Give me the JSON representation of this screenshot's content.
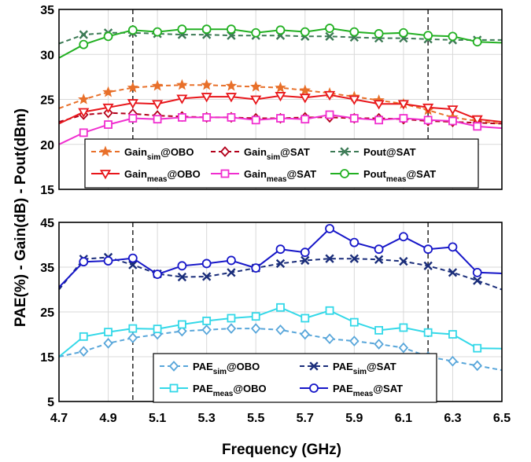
{
  "chart_data": [
    {
      "type": "line",
      "panel": "top",
      "xlim": [
        4.7,
        6.5
      ],
      "ylim": [
        15,
        35
      ],
      "grid": true,
      "yticks": [
        15,
        20,
        25,
        30,
        35
      ],
      "legend_position": "bottom",
      "x": [
        4.7,
        4.8,
        4.9,
        5.0,
        5.1,
        5.2,
        5.3,
        5.4,
        5.5,
        5.6,
        5.7,
        5.8,
        5.9,
        6.0,
        6.1,
        6.2,
        6.3,
        6.4,
        6.5
      ],
      "reference_lines_x": [
        5.0,
        6.2
      ],
      "series": [
        {
          "legend_main": "Gain",
          "legend_sub": "sim",
          "legend_tail": "@OBO",
          "color": "#E8702A",
          "dash": "dashed",
          "marker": "star",
          "marker_x": [
            4.8,
            4.9,
            5.0,
            5.1,
            5.2,
            5.3,
            5.4,
            5.5,
            5.6,
            5.7,
            5.8,
            5.9,
            6.0,
            6.1,
            6.2,
            6.3,
            6.4
          ],
          "values": [
            24.0,
            25.0,
            25.8,
            26.3,
            26.5,
            26.6,
            26.6,
            26.5,
            26.4,
            26.3,
            26.0,
            25.7,
            25.3,
            24.9,
            24.5,
            23.8,
            23.0,
            22.6,
            22.3
          ]
        },
        {
          "legend_main": "Gain",
          "legend_sub": "sim",
          "legend_tail": "@SAT",
          "color": "#B3001B",
          "dash": "dashed",
          "marker": "diamond",
          "marker_x": [
            4.8,
            4.9,
            5.0,
            5.1,
            5.2,
            5.3,
            5.4,
            5.5,
            5.6,
            5.7,
            5.8,
            5.9,
            6.0,
            6.1,
            6.2,
            6.3,
            6.4
          ],
          "values": [
            22.5,
            23.3,
            23.5,
            23.4,
            23.2,
            23.1,
            23.0,
            23.0,
            22.9,
            22.9,
            23.0,
            23.0,
            22.9,
            22.9,
            22.8,
            22.6,
            22.5,
            22.4,
            22.3
          ]
        },
        {
          "legend_main": "Pout",
          "legend_sub": "",
          "legend_tail": "@SAT",
          "color": "#3C7A55",
          "dash": "dashed",
          "marker": "x",
          "marker_x": [
            4.8,
            4.9,
            5.0,
            5.1,
            5.2,
            5.3,
            5.4,
            5.5,
            5.6,
            5.7,
            5.8,
            5.9,
            6.0,
            6.1,
            6.2,
            6.3,
            6.4
          ],
          "values": [
            31.2,
            32.2,
            32.4,
            32.4,
            32.3,
            32.2,
            32.2,
            32.1,
            32.1,
            32.1,
            32.0,
            32.0,
            31.9,
            31.8,
            31.8,
            31.7,
            31.6,
            31.6,
            31.6
          ]
        },
        {
          "legend_main": "Gain",
          "legend_sub": "meas",
          "legend_tail": "@OBO",
          "color": "#E8161B",
          "dash": "solid",
          "marker": "triangle-down",
          "marker_x": [
            4.8,
            4.9,
            5.0,
            5.1,
            5.2,
            5.3,
            5.4,
            5.5,
            5.6,
            5.7,
            5.8,
            5.9,
            6.0,
            6.1,
            6.2,
            6.3,
            6.4
          ],
          "values": [
            22.3,
            23.6,
            24.1,
            24.6,
            24.5,
            25.1,
            25.3,
            25.3,
            25.0,
            25.4,
            25.2,
            25.5,
            25.0,
            24.5,
            24.5,
            24.1,
            23.9,
            22.8,
            22.5
          ]
        },
        {
          "legend_main": "Gain",
          "legend_sub": "meas",
          "legend_tail": "@SAT",
          "color": "#F02ECF",
          "dash": "solid",
          "marker": "square",
          "marker_x": [
            4.8,
            4.9,
            5.0,
            5.1,
            5.2,
            5.3,
            5.4,
            5.5,
            5.6,
            5.7,
            5.8,
            5.9,
            6.0,
            6.1,
            6.2,
            6.3,
            6.4
          ],
          "values": [
            20.0,
            21.3,
            22.2,
            22.9,
            22.8,
            23.0,
            23.0,
            23.0,
            22.7,
            22.9,
            22.8,
            23.3,
            22.9,
            22.7,
            22.9,
            22.7,
            22.6,
            22.0,
            21.8
          ]
        },
        {
          "legend_main": "Pout",
          "legend_sub": "meas",
          "legend_tail": "@SAT",
          "color": "#22B022",
          "dash": "solid",
          "marker": "circle",
          "marker_x": [
            4.8,
            4.9,
            5.0,
            5.1,
            5.2,
            5.3,
            5.4,
            5.5,
            5.6,
            5.7,
            5.8,
            5.9,
            6.0,
            6.1,
            6.2,
            6.3,
            6.4
          ],
          "values": [
            29.6,
            31.1,
            32.0,
            32.7,
            32.5,
            32.8,
            32.8,
            32.8,
            32.4,
            32.7,
            32.5,
            32.9,
            32.5,
            32.3,
            32.4,
            32.1,
            32.0,
            31.4,
            31.3
          ]
        }
      ]
    },
    {
      "type": "line",
      "panel": "bottom",
      "xlim": [
        4.7,
        6.5
      ],
      "ylim": [
        5,
        45
      ],
      "grid": true,
      "yticks": [
        5,
        15,
        25,
        35,
        45
      ],
      "xticks": [
        4.7,
        4.9,
        5.1,
        5.3,
        5.5,
        5.7,
        5.9,
        6.1,
        6.3,
        6.5
      ],
      "legend_position": "bottom",
      "x": [
        4.7,
        4.8,
        4.9,
        5.0,
        5.1,
        5.2,
        5.3,
        5.4,
        5.5,
        5.6,
        5.7,
        5.8,
        5.9,
        6.0,
        6.1,
        6.2,
        6.3,
        6.4,
        6.5
      ],
      "reference_lines_x": [
        5.0,
        6.2
      ],
      "series": [
        {
          "legend_main": "PAE",
          "legend_sub": "sim",
          "legend_tail": "@OBO",
          "color": "#58A6DA",
          "dash": "dashed",
          "marker": "diamond",
          "marker_x": [
            4.8,
            4.9,
            5.0,
            5.1,
            5.2,
            5.3,
            5.4,
            5.5,
            5.6,
            5.7,
            5.8,
            5.9,
            6.0,
            6.1,
            6.2,
            6.3,
            6.4
          ],
          "values": [
            15.0,
            16.2,
            18.0,
            19.2,
            20.0,
            20.7,
            21.0,
            21.3,
            21.3,
            21.0,
            20.0,
            19.0,
            18.5,
            17.8,
            17.0,
            15.0,
            14.0,
            13.0,
            12.0
          ]
        },
        {
          "legend_main": "PAE",
          "legend_sub": "sim",
          "legend_tail": "@SAT",
          "color": "#1A2D7A",
          "dash": "dashed",
          "marker": "x",
          "marker_x": [
            4.8,
            4.9,
            5.0,
            5.1,
            5.2,
            5.3,
            5.4,
            5.5,
            5.6,
            5.7,
            5.8,
            5.9,
            6.0,
            6.1,
            6.2,
            6.3,
            6.4
          ],
          "values": [
            30.0,
            36.8,
            37.2,
            35.5,
            33.5,
            32.8,
            32.9,
            33.8,
            34.8,
            35.8,
            36.5,
            36.9,
            36.9,
            36.7,
            36.3,
            35.3,
            33.8,
            32.0,
            30.0
          ]
        },
        {
          "legend_main": "PAE",
          "legend_sub": "meas",
          "legend_tail": "@OBO",
          "color": "#33D8E8",
          "dash": "solid",
          "marker": "square",
          "marker_x": [
            4.8,
            4.9,
            5.0,
            5.1,
            5.2,
            5.3,
            5.4,
            5.5,
            5.6,
            5.7,
            5.8,
            5.9,
            6.0,
            6.1,
            6.2,
            6.3,
            6.4
          ],
          "values": [
            15.0,
            19.5,
            20.5,
            21.3,
            21.2,
            22.2,
            23.0,
            23.6,
            24.0,
            26.0,
            23.6,
            25.3,
            22.7,
            20.9,
            21.5,
            20.4,
            20.0,
            16.9,
            16.8
          ]
        },
        {
          "legend_main": "PAE",
          "legend_sub": "meas",
          "legend_tail": "@SAT",
          "color": "#1616C8",
          "dash": "solid",
          "marker": "circle",
          "marker_x": [
            4.8,
            4.9,
            5.0,
            5.1,
            5.2,
            5.3,
            5.4,
            5.5,
            5.6,
            5.7,
            5.8,
            5.9,
            6.0,
            6.1,
            6.2,
            6.3,
            6.4
          ],
          "values": [
            30.5,
            36.2,
            36.4,
            37.0,
            33.4,
            35.3,
            35.8,
            36.5,
            34.8,
            39.0,
            38.3,
            43.6,
            40.5,
            39.0,
            41.8,
            39.0,
            39.5,
            33.8,
            33.6
          ]
        }
      ]
    }
  ],
  "axes": {
    "ylabel": "PAE(%) - Gain(dB) - Pout(dBm)",
    "xlabel": "Frequency (GHz)"
  }
}
